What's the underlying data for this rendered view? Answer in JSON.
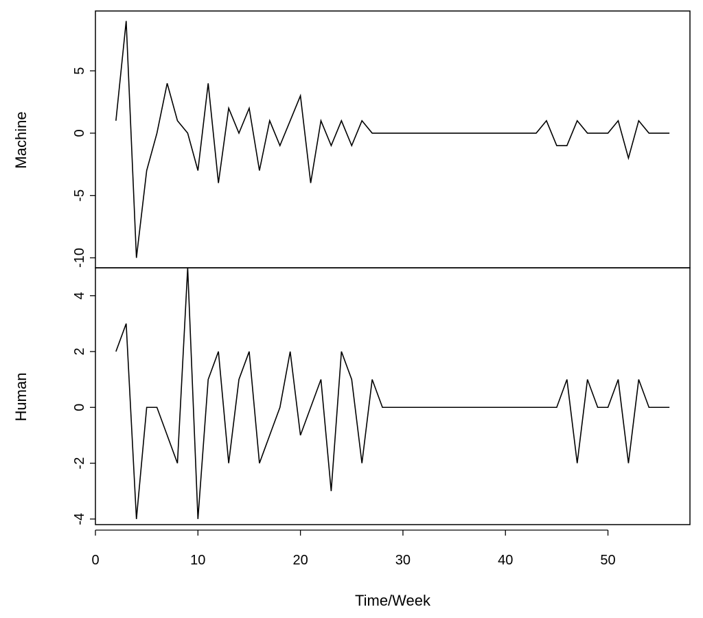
{
  "chart_data": [
    {
      "type": "line",
      "panel": "top",
      "ylabel": "Machine",
      "ylim": [
        -10.8,
        9.8
      ],
      "yticks": [
        -10,
        -5,
        0,
        5
      ],
      "x": [
        2,
        3,
        4,
        5,
        6,
        7,
        8,
        9,
        10,
        11,
        12,
        13,
        14,
        15,
        16,
        17,
        18,
        19,
        20,
        21,
        22,
        23,
        24,
        25,
        26,
        27,
        28,
        29,
        30,
        31,
        32,
        33,
        34,
        35,
        36,
        37,
        38,
        39,
        40,
        41,
        42,
        43,
        44,
        45,
        46,
        47,
        48,
        49,
        50,
        51,
        52,
        53,
        54,
        55,
        56
      ],
      "values": [
        1,
        9,
        -10,
        -3,
        0,
        4,
        1,
        0,
        -3,
        4,
        -4,
        2,
        0,
        2,
        -3,
        1,
        -1,
        1,
        3,
        -4,
        1,
        -1,
        1,
        -1,
        1,
        0,
        0,
        0,
        0,
        0,
        0,
        0,
        0,
        0,
        0,
        0,
        0,
        0,
        0,
        0,
        0,
        0,
        1,
        -1,
        -1,
        1,
        0,
        0,
        0,
        1,
        -2,
        1,
        0,
        0,
        0
      ]
    },
    {
      "type": "line",
      "panel": "bottom",
      "ylabel": "Human",
      "xlabel": "Time/Week",
      "ylim": [
        -4.2,
        5.0
      ],
      "yticks": [
        -4,
        -2,
        0,
        2,
        4
      ],
      "xlim": [
        0,
        58
      ],
      "xticks": [
        0,
        10,
        20,
        30,
        40,
        50
      ],
      "x": [
        2,
        3,
        4,
        5,
        6,
        7,
        8,
        9,
        10,
        11,
        12,
        13,
        14,
        15,
        16,
        17,
        18,
        19,
        20,
        21,
        22,
        23,
        24,
        25,
        26,
        27,
        28,
        29,
        30,
        31,
        32,
        33,
        34,
        35,
        36,
        37,
        38,
        39,
        40,
        41,
        42,
        43,
        44,
        45,
        46,
        47,
        48,
        49,
        50,
        51,
        52,
        53,
        54,
        55,
        56
      ],
      "values": [
        2,
        3,
        -4,
        0,
        0,
        -1,
        -2,
        5,
        -4,
        1,
        2,
        -2,
        1,
        2,
        -2,
        -1,
        0,
        2,
        -1,
        0,
        1,
        -3,
        2,
        1,
        -2,
        1,
        0,
        0,
        0,
        0,
        0,
        0,
        0,
        0,
        0,
        0,
        0,
        0,
        0,
        0,
        0,
        0,
        0,
        0,
        1,
        -2,
        1,
        0,
        0,
        1,
        -2,
        1,
        0,
        0,
        0
      ]
    }
  ]
}
